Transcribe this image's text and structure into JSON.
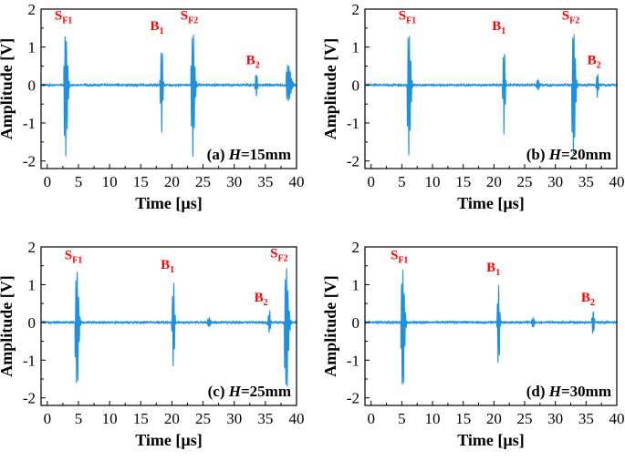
{
  "colors": {
    "signal": "#1e90e0",
    "annotation": "#ff0000",
    "axis": "#000000"
  },
  "chart_data": [
    {
      "type": "line",
      "panel_label": {
        "prefix": "(a) ",
        "var": "H",
        "suffix": "=15mm"
      },
      "xlabel": "Time [µs]",
      "ylabel": "Amplitude [V]",
      "xlim": [
        -1,
        40
      ],
      "ylim": [
        -2.2,
        2.0
      ],
      "xticks": [
        0,
        5,
        10,
        15,
        20,
        25,
        30,
        35,
        40
      ],
      "yticks": [
        -2,
        -1,
        0,
        1,
        2
      ],
      "bursts": [
        {
          "t": 2.8,
          "pos": 1.55,
          "neg": -2.05,
          "dur": 1.0
        },
        {
          "t": 18.2,
          "pos": 1.28,
          "neg": -1.45,
          "dur": 0.6
        },
        {
          "t": 23.2,
          "pos": 1.55,
          "neg": -2.05,
          "dur": 1.0
        },
        {
          "t": 33.4,
          "pos": 0.35,
          "neg": -0.35,
          "dur": 0.6
        },
        {
          "t": 38.5,
          "pos": 0.6,
          "neg": -0.5,
          "dur": 1.6
        }
      ],
      "peak_labels": [
        {
          "main": "S",
          "sub": "F1",
          "x": 2.6,
          "y": 1.72
        },
        {
          "main": "B",
          "sub": "1",
          "x": 17.6,
          "y": 1.45
        },
        {
          "main": "S",
          "sub": "F2",
          "x": 22.8,
          "y": 1.72
        },
        {
          "main": "B",
          "sub": "2",
          "x": 33.0,
          "y": 0.55
        }
      ]
    },
    {
      "type": "line",
      "panel_label": {
        "prefix": "(b) ",
        "var": "H",
        "suffix": "=20mm"
      },
      "xlabel": "Time [µs]",
      "ylabel": "Amplitude [V]",
      "xlim": [
        -1,
        40
      ],
      "ylim": [
        -2.2,
        2.0
      ],
      "xticks": [
        0,
        5,
        10,
        15,
        20,
        25,
        30,
        35,
        40
      ],
      "yticks": [
        -2,
        -1,
        0,
        1,
        2
      ],
      "bursts": [
        {
          "t": 6.0,
          "pos": 1.55,
          "neg": -2.05,
          "dur": 1.0
        },
        {
          "t": 21.5,
          "pos": 1.28,
          "neg": -1.45,
          "dur": 0.6
        },
        {
          "t": 27.0,
          "pos": 0.15,
          "neg": -0.15,
          "dur": 0.8
        },
        {
          "t": 32.8,
          "pos": 1.55,
          "neg": -2.05,
          "dur": 1.0
        },
        {
          "t": 36.7,
          "pos": 0.35,
          "neg": -0.35,
          "dur": 0.6
        }
      ],
      "peak_labels": [
        {
          "main": "S",
          "sub": "F1",
          "x": 5.9,
          "y": 1.72
        },
        {
          "main": "B",
          "sub": "1",
          "x": 20.8,
          "y": 1.45
        },
        {
          "main": "S",
          "sub": "F2",
          "x": 32.5,
          "y": 1.72
        },
        {
          "main": "B",
          "sub": "2",
          "x": 36.3,
          "y": 0.55
        }
      ]
    },
    {
      "type": "line",
      "panel_label": {
        "prefix": "(c) ",
        "var": "H",
        "suffix": "=25mm"
      },
      "xlabel": "Time [µs]",
      "ylabel": "Amplitude [V]",
      "xlim": [
        -1,
        40
      ],
      "ylim": [
        -2.2,
        2.0
      ],
      "xticks": [
        0,
        5,
        10,
        15,
        20,
        25,
        30,
        35,
        40
      ],
      "yticks": [
        -2,
        -1,
        0,
        1,
        2
      ],
      "bursts": [
        {
          "t": 4.6,
          "pos": 1.5,
          "neg": -2.05,
          "dur": 1.0
        },
        {
          "t": 20.1,
          "pos": 1.25,
          "neg": -1.4,
          "dur": 0.6
        },
        {
          "t": 25.8,
          "pos": 0.15,
          "neg": -0.15,
          "dur": 0.8
        },
        {
          "t": 35.5,
          "pos": 0.38,
          "neg": -0.35,
          "dur": 0.6
        },
        {
          "t": 38.2,
          "pos": 1.55,
          "neg": -2.05,
          "dur": 1.2
        }
      ],
      "peak_labels": [
        {
          "main": "S",
          "sub": "F1",
          "x": 4.2,
          "y": 1.67
        },
        {
          "main": "B",
          "sub": "1",
          "x": 19.3,
          "y": 1.42
        },
        {
          "main": "B",
          "sub": "2",
          "x": 34.3,
          "y": 0.55
        },
        {
          "main": "S",
          "sub": "F2",
          "x": 37.2,
          "y": 1.72
        }
      ]
    },
    {
      "type": "line",
      "panel_label": {
        "prefix": "(d) ",
        "var": "H",
        "suffix": "=30mm"
      },
      "xlabel": "Time [µs]",
      "ylabel": "Amplitude [V]",
      "xlim": [
        -1,
        40
      ],
      "ylim": [
        -2.2,
        2.0
      ],
      "xticks": [
        0,
        5,
        10,
        15,
        20,
        25,
        30,
        35,
        40
      ],
      "yticks": [
        -2,
        -1,
        0,
        1,
        2
      ],
      "bursts": [
        {
          "t": 5.0,
          "pos": 1.55,
          "neg": -2.05,
          "dur": 1.0
        },
        {
          "t": 20.6,
          "pos": 1.15,
          "neg": -1.35,
          "dur": 0.6
        },
        {
          "t": 26.2,
          "pos": 0.15,
          "neg": -0.15,
          "dur": 0.8
        },
        {
          "t": 36.0,
          "pos": 0.38,
          "neg": -0.38,
          "dur": 0.6
        }
      ],
      "peak_labels": [
        {
          "main": "S",
          "sub": "F1",
          "x": 4.6,
          "y": 1.67
        },
        {
          "main": "B",
          "sub": "1",
          "x": 19.9,
          "y": 1.35
        },
        {
          "main": "B",
          "sub": "2",
          "x": 35.3,
          "y": 0.55
        }
      ]
    }
  ]
}
